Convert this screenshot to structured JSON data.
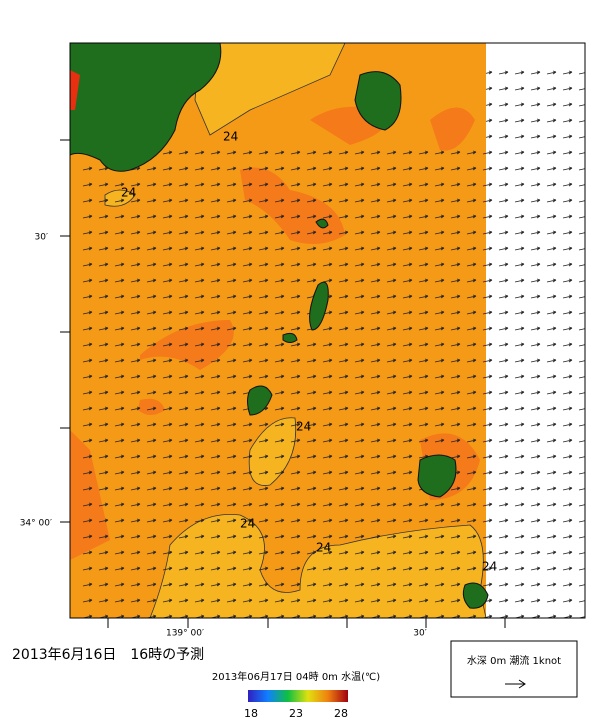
{
  "map": {
    "y_axis_labels": [
      "30′",
      "34° 00′"
    ],
    "x_axis_labels": [
      "139° 00′",
      "30′"
    ],
    "contour_labels": [
      "24",
      "24",
      "24",
      "24",
      "24",
      "24"
    ]
  },
  "title": "2013年6月16日　16時の予測",
  "subtitle": "2013年06月17日 04時 0m 水温(℃)",
  "colorbar": {
    "ticks": [
      18,
      23,
      28
    ]
  },
  "legend": {
    "text": "水深 0m 潮流 1knot"
  }
}
